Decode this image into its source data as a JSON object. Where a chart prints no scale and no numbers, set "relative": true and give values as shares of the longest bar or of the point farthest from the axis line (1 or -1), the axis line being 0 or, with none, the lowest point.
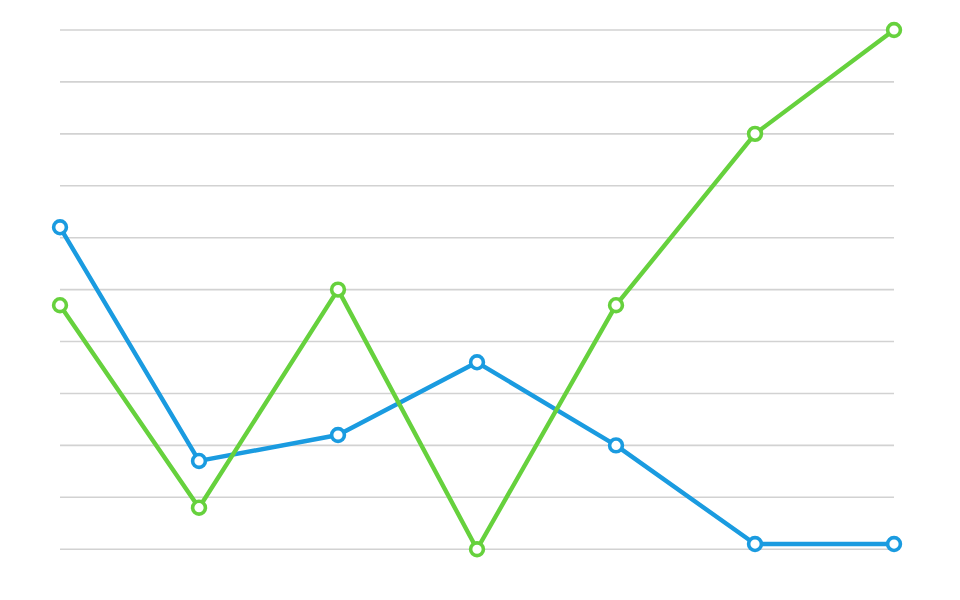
{
  "chart_data": {
    "type": "line",
    "relative": true,
    "categories": [
      null,
      null,
      null,
      null,
      null,
      null,
      null
    ],
    "grid": "y",
    "marker": "circle",
    "line_style": "solid",
    "series": [
      {
        "color": "#1a9be0",
        "values": [
          0.62,
          0.17,
          0.22,
          0.36,
          0.2,
          0.01,
          0.01
        ]
      },
      {
        "color": "#66d13d",
        "values": [
          0.47,
          0.08,
          0.5,
          0.0,
          0.47,
          0.8,
          1.0
        ]
      }
    ]
  }
}
